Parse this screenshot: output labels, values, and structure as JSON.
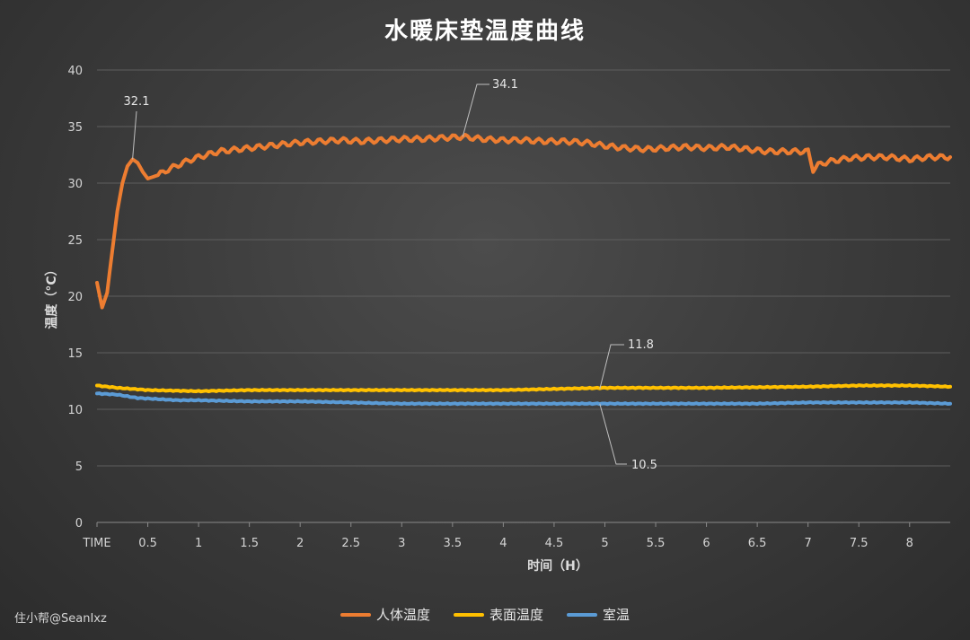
{
  "chart_data": {
    "type": "line",
    "title": "水暖床垫温度曲线",
    "xlabel": "时间（H）",
    "ylabel": "温度（°C）",
    "xlim": [
      0,
      8.4
    ],
    "ylim": [
      0,
      40
    ],
    "yticks": [
      "0",
      "5",
      "10",
      "15",
      "20",
      "25",
      "30",
      "35",
      "40"
    ],
    "xticks": [
      "TIME",
      "0.5",
      "1",
      "1.5",
      "2",
      "2.5",
      "3",
      "3.5",
      "4",
      "4.5",
      "5",
      "5.5",
      "6",
      "6.5",
      "7",
      "7.5",
      "8"
    ],
    "grid": "horizontal",
    "legend_position": "bottom",
    "series": [
      {
        "name": "人体温度",
        "color": "#ED7D31",
        "points": [
          [
            0.0,
            21.2
          ],
          [
            0.05,
            19.0
          ],
          [
            0.1,
            20.3
          ],
          [
            0.15,
            24.0
          ],
          [
            0.2,
            27.5
          ],
          [
            0.25,
            30.0
          ],
          [
            0.3,
            31.5
          ],
          [
            0.35,
            32.1
          ],
          [
            0.4,
            31.8
          ],
          [
            0.45,
            31.0
          ],
          [
            0.5,
            30.4
          ],
          [
            0.6,
            30.7
          ],
          [
            0.7,
            31.2
          ],
          [
            0.8,
            31.6
          ],
          [
            0.9,
            32.0
          ],
          [
            1.0,
            32.3
          ],
          [
            1.2,
            32.8
          ],
          [
            1.4,
            33.0
          ],
          [
            1.6,
            33.2
          ],
          [
            1.8,
            33.4
          ],
          [
            2.0,
            33.6
          ],
          [
            2.2,
            33.7
          ],
          [
            2.4,
            33.8
          ],
          [
            2.6,
            33.7
          ],
          [
            2.8,
            33.8
          ],
          [
            3.0,
            33.9
          ],
          [
            3.2,
            33.9
          ],
          [
            3.4,
            34.0
          ],
          [
            3.6,
            34.1
          ],
          [
            3.8,
            33.9
          ],
          [
            4.0,
            33.8
          ],
          [
            4.2,
            33.8
          ],
          [
            4.4,
            33.7
          ],
          [
            4.6,
            33.7
          ],
          [
            4.8,
            33.6
          ],
          [
            5.0,
            33.3
          ],
          [
            5.2,
            33.1
          ],
          [
            5.4,
            33.0
          ],
          [
            5.6,
            33.1
          ],
          [
            5.8,
            33.2
          ],
          [
            6.0,
            33.1
          ],
          [
            6.2,
            33.2
          ],
          [
            6.4,
            33.0
          ],
          [
            6.6,
            32.8
          ],
          [
            6.8,
            32.8
          ],
          [
            7.0,
            32.8
          ],
          [
            7.05,
            31.2
          ],
          [
            7.1,
            31.6
          ],
          [
            7.2,
            31.9
          ],
          [
            7.4,
            32.2
          ],
          [
            7.6,
            32.3
          ],
          [
            7.8,
            32.3
          ],
          [
            8.0,
            32.1
          ],
          [
            8.2,
            32.3
          ],
          [
            8.4,
            32.3
          ]
        ]
      },
      {
        "name": "表面温度",
        "color": "#FFC000",
        "points": [
          [
            0.0,
            12.1
          ],
          [
            0.2,
            11.9
          ],
          [
            0.5,
            11.7
          ],
          [
            1.0,
            11.6
          ],
          [
            1.5,
            11.7
          ],
          [
            2.0,
            11.7
          ],
          [
            3.0,
            11.7
          ],
          [
            4.0,
            11.7
          ],
          [
            4.5,
            11.8
          ],
          [
            5.0,
            11.9
          ],
          [
            6.0,
            11.9
          ],
          [
            7.0,
            12.0
          ],
          [
            7.5,
            12.1
          ],
          [
            8.0,
            12.1
          ],
          [
            8.4,
            12.0
          ]
        ]
      },
      {
        "name": "室温",
        "color": "#5B9BD5",
        "points": [
          [
            0.0,
            11.4
          ],
          [
            0.2,
            11.3
          ],
          [
            0.4,
            11.0
          ],
          [
            0.6,
            10.9
          ],
          [
            0.8,
            10.8
          ],
          [
            1.0,
            10.8
          ],
          [
            1.5,
            10.7
          ],
          [
            2.0,
            10.7
          ],
          [
            2.5,
            10.6
          ],
          [
            3.0,
            10.5
          ],
          [
            3.5,
            10.5
          ],
          [
            4.0,
            10.5
          ],
          [
            4.5,
            10.5
          ],
          [
            5.0,
            10.5
          ],
          [
            5.5,
            10.5
          ],
          [
            6.0,
            10.5
          ],
          [
            6.5,
            10.5
          ],
          [
            7.0,
            10.6
          ],
          [
            7.5,
            10.6
          ],
          [
            8.0,
            10.6
          ],
          [
            8.4,
            10.5
          ]
        ]
      }
    ],
    "annotations": [
      {
        "text": "32.1",
        "series": 0,
        "x": 0.35,
        "y": 32.1
      },
      {
        "text": "34.1",
        "series": 0,
        "x": 3.6,
        "y": 34.1
      },
      {
        "text": "11.8",
        "series": 1,
        "x": 4.95,
        "y": 11.8
      },
      {
        "text": "10.5",
        "series": 2,
        "x": 4.95,
        "y": 10.5
      }
    ]
  },
  "watermark": "住小帮@SeanIxz"
}
